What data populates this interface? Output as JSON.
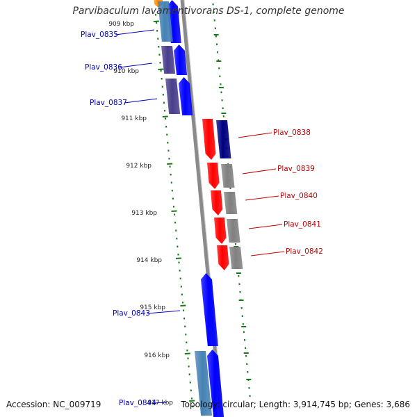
{
  "title": "Parvibaculum lavamentivorans DS-1, complete genome",
  "accession_text": "Accession: NC_009719",
  "stats_text": "Topology: circular; Length: 3,914,745 bp; Genes: 3,686",
  "colors": {
    "backbone": "#8a8a8a",
    "tick": "#1a7a1a",
    "left_label": "#0000c0",
    "right_label": "#c00000",
    "forward_gene": "#0000ff",
    "reverse_gene": "#ff0000",
    "cog_blue": "#4682b4",
    "cog_purple": "#483d8b",
    "cog_navy": "#000080",
    "cog_gray": "#808080",
    "cog_orange": "#ff8c00"
  },
  "scale_labels": [
    "909 kbp",
    "910 kbp",
    "911 kbp",
    "912 kbp",
    "913 kbp",
    "914 kbp",
    "915 kbp",
    "916 kbp",
    "917 kbp"
  ],
  "genes": [
    {
      "name": "Plav_0835",
      "strand": "forward",
      "cog_color": "cog_blue"
    },
    {
      "name": "Plav_0836",
      "strand": "forward",
      "cog_color": "cog_purple"
    },
    {
      "name": "Plav_0837",
      "strand": "forward",
      "cog_color": "cog_purple"
    },
    {
      "name": "Plav_0838",
      "strand": "reverse",
      "cog_color": "cog_navy"
    },
    {
      "name": "Plav_0839",
      "strand": "reverse",
      "cog_color": "cog_gray"
    },
    {
      "name": "Plav_0840",
      "strand": "reverse",
      "cog_color": "cog_gray"
    },
    {
      "name": "Plav_0841",
      "strand": "reverse",
      "cog_color": "cog_gray"
    },
    {
      "name": "Plav_0842",
      "strand": "reverse",
      "cog_color": "cog_gray"
    },
    {
      "name": "Plav_0843",
      "strand": "forward",
      "cog_color": ""
    },
    {
      "name": "Plav_0844",
      "strand": "forward",
      "cog_color": "cog_blue"
    }
  ]
}
